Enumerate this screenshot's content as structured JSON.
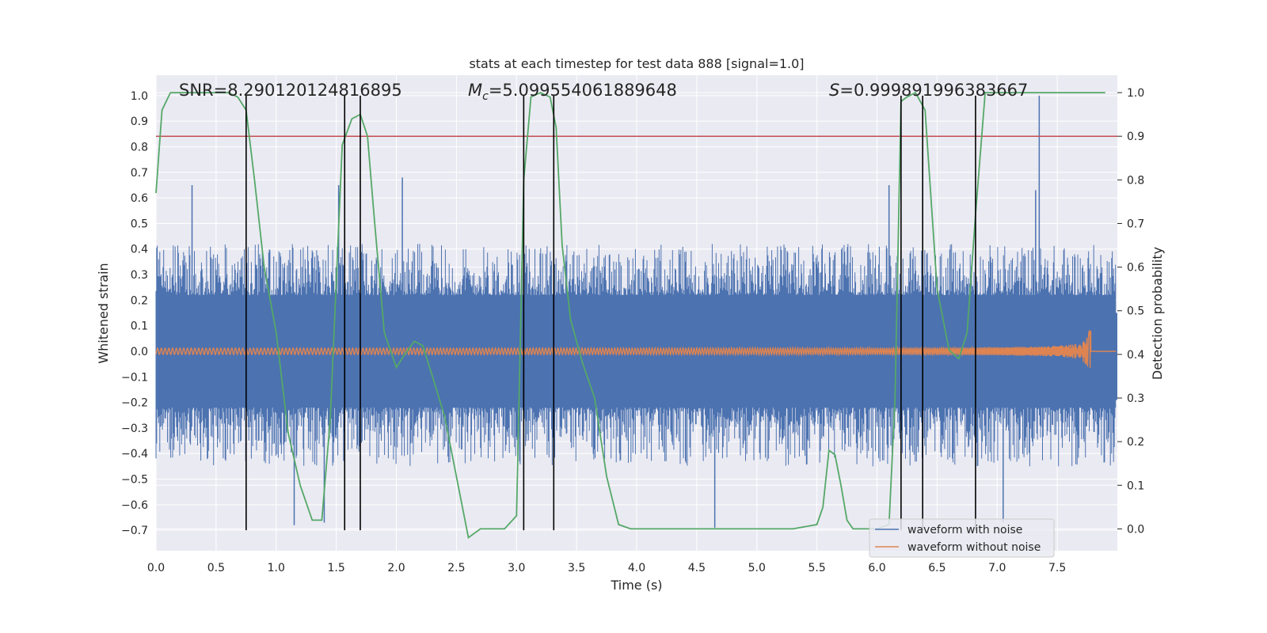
{
  "chart_data": {
    "type": "line",
    "title": "stats at each timestep for test data 888 [signal=1.0]",
    "xlabel": "Time (s)",
    "ylabel": "Whitened strain",
    "y2label": "Detection probability",
    "xlim": [
      0.0,
      8.0
    ],
    "ylim": [
      -0.78,
      1.08
    ],
    "y2lim": [
      -0.05,
      1.04
    ],
    "xticks": [
      0.0,
      0.5,
      1.0,
      1.5,
      2.0,
      2.5,
      3.0,
      3.5,
      4.0,
      4.5,
      5.0,
      5.5,
      6.0,
      6.5,
      7.0,
      7.5
    ],
    "xtick_labels": [
      "0.0",
      "0.5",
      "1.0",
      "1.5",
      "2.0",
      "2.5",
      "3.0",
      "3.5",
      "4.0",
      "4.5",
      "5.0",
      "5.5",
      "6.0",
      "6.5",
      "7.0",
      "7.5"
    ],
    "yticks": [
      1.0,
      0.9,
      0.8,
      0.7,
      0.6,
      0.5,
      0.4,
      0.3,
      0.2,
      0.1,
      0.0,
      -0.1,
      -0.2,
      -0.3,
      -0.4,
      -0.5,
      -0.6,
      -0.7
    ],
    "ytick_labels": [
      "1.0",
      "0.9",
      "0.8",
      "0.7",
      "0.6",
      "0.5",
      "0.4",
      "0.3",
      "0.2",
      "0.1",
      "0.0",
      "−0.1",
      "−0.2",
      "−0.3",
      "−0.4",
      "−0.5",
      "−0.6",
      "−0.7"
    ],
    "y2ticks": [
      1.0,
      0.9,
      0.8,
      0.7,
      0.6,
      0.5,
      0.4,
      0.3,
      0.2,
      0.1,
      0.0
    ],
    "y2tick_labels": [
      "1.0",
      "0.9",
      "0.8",
      "0.7",
      "0.6",
      "0.5",
      "0.4",
      "0.3",
      "0.2",
      "0.1",
      "0.0"
    ],
    "grid": true,
    "legend_position": "lower-right",
    "annotations": {
      "snr": "SNR=8.290120124816895",
      "mc_symbol": "M",
      "mc_sub": "c",
      "mc_value": "=5.099554061889648",
      "s_symbol": "S",
      "s_value": "=0.999891996383667"
    },
    "threshold_line": {
      "y2": 0.9,
      "color": "#c44e52"
    },
    "vertical_lines_x": [
      0.75,
      1.57,
      1.7,
      3.06,
      3.31,
      6.2,
      6.38,
      6.82
    ],
    "series": [
      {
        "name": "waveform with noise",
        "color": "#4c72b0",
        "axis": "left",
        "envelope_description": "dense noise, roughly symmetric about 0",
        "typical_max": 0.42,
        "typical_min": -0.45,
        "spikes": [
          [
            7.35,
            1.0
          ],
          [
            0.3,
            0.65
          ],
          [
            1.52,
            0.65
          ],
          [
            2.05,
            0.68
          ],
          [
            6.1,
            0.65
          ],
          [
            7.32,
            0.63
          ],
          [
            1.15,
            -0.68
          ],
          [
            1.4,
            -0.67
          ],
          [
            4.65,
            -0.69
          ],
          [
            7.05,
            -0.67
          ]
        ]
      },
      {
        "name": "waveform without noise",
        "color": "#dd8452",
        "axis": "left",
        "chirp_end": 7.78,
        "amplitude_start": 0.012,
        "amplitude_peak": 0.12
      },
      {
        "name": "",
        "color": "#55a868",
        "axis": "right",
        "x": [
          0.0,
          0.05,
          0.12,
          0.2,
          0.3,
          0.4,
          0.5,
          0.6,
          0.68,
          0.75,
          0.82,
          0.9,
          1.0,
          1.1,
          1.2,
          1.3,
          1.38,
          1.45,
          1.55,
          1.63,
          1.7,
          1.76,
          1.82,
          1.9,
          2.0,
          2.07,
          2.15,
          2.22,
          2.3,
          2.4,
          2.5,
          2.6,
          2.7,
          2.8,
          2.9,
          3.0,
          3.06,
          3.12,
          3.2,
          3.28,
          3.33,
          3.38,
          3.45,
          3.55,
          3.65,
          3.75,
          3.85,
          3.95,
          4.1,
          4.5,
          5.0,
          5.3,
          5.5,
          5.55,
          5.6,
          5.65,
          5.7,
          5.75,
          5.8,
          5.9,
          6.0,
          6.1,
          6.15,
          6.2,
          6.25,
          6.32,
          6.4,
          6.5,
          6.6,
          6.68,
          6.75,
          6.82,
          6.9,
          7.0,
          7.5,
          7.9
        ],
        "y": [
          0.77,
          0.96,
          1.0,
          1.0,
          1.0,
          1.0,
          1.0,
          1.0,
          0.99,
          0.96,
          0.8,
          0.6,
          0.45,
          0.22,
          0.1,
          0.02,
          0.02,
          0.25,
          0.88,
          0.94,
          0.95,
          0.9,
          0.7,
          0.45,
          0.37,
          0.4,
          0.43,
          0.42,
          0.35,
          0.26,
          0.12,
          -0.02,
          0.0,
          0.0,
          0.0,
          0.03,
          0.8,
          0.99,
          1.0,
          0.99,
          0.92,
          0.65,
          0.48,
          0.38,
          0.3,
          0.12,
          0.01,
          0.0,
          0.0,
          0.0,
          0.0,
          0.0,
          0.01,
          0.05,
          0.18,
          0.17,
          0.1,
          0.02,
          0.0,
          0.0,
          0.0,
          0.01,
          0.3,
          0.98,
          0.99,
          1.0,
          0.96,
          0.55,
          0.41,
          0.39,
          0.45,
          0.72,
          1.0,
          1.0,
          1.0,
          1.0
        ]
      }
    ]
  }
}
